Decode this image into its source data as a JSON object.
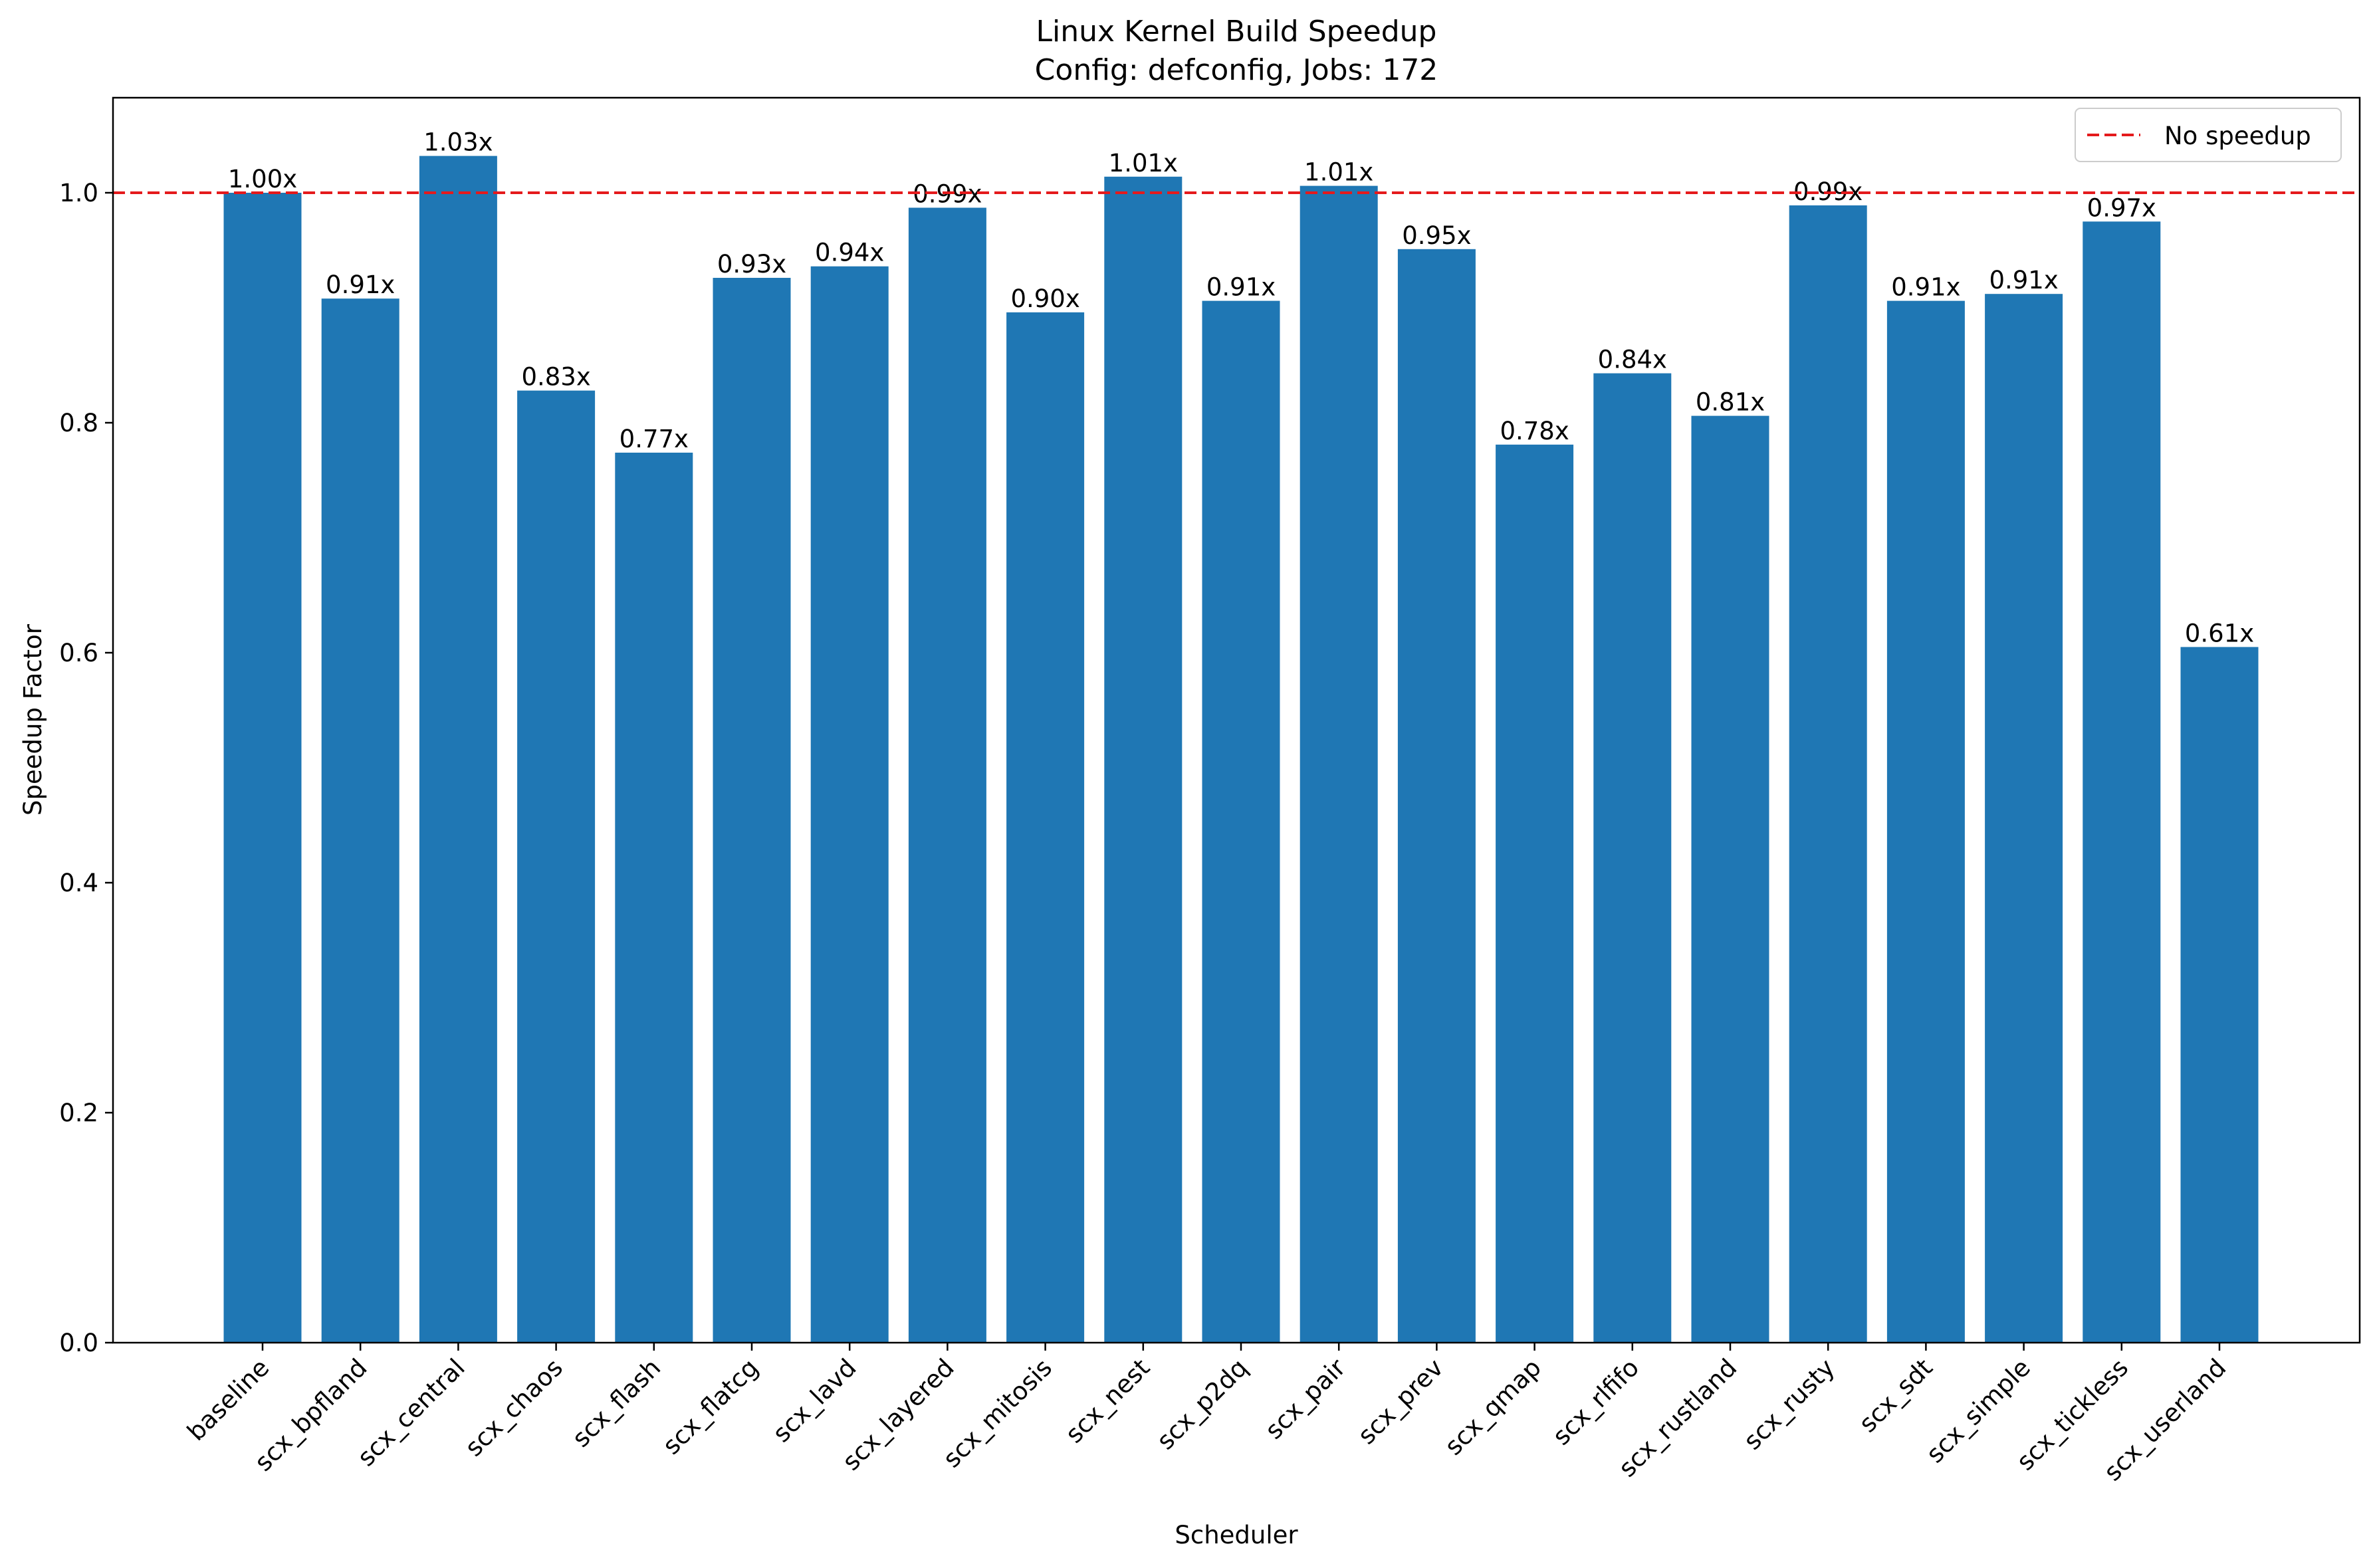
{
  "chart_data": {
    "type": "bar",
    "title": "Linux Kernel Build Speedup",
    "subtitle": "Config: defconfig, Jobs: 172",
    "xlabel": "Scheduler",
    "ylabel": "Speedup Factor",
    "ylim": [
      0,
      1.083
    ],
    "yticks": [
      0.0,
      0.2,
      0.4,
      0.6,
      0.8,
      1.0
    ],
    "ytick_labels": [
      "0.0",
      "0.2",
      "0.4",
      "0.6",
      "0.8",
      "1.0"
    ],
    "grid": false,
    "bar_color": "#1f77b4",
    "categories": [
      "baseline",
      "scx_bpfland",
      "scx_central",
      "scx_chaos",
      "scx_flash",
      "scx_flatcg",
      "scx_lavd",
      "scx_layered",
      "scx_mitosis",
      "scx_nest",
      "scx_p2dq",
      "scx_pair",
      "scx_prev",
      "scx_qmap",
      "scx_rlfifo",
      "scx_rustland",
      "scx_rusty",
      "scx_sdt",
      "scx_simple",
      "scx_tickless",
      "scx_userland"
    ],
    "values": [
      1.0,
      0.908,
      1.032,
      0.828,
      0.774,
      0.926,
      0.936,
      0.987,
      0.896,
      1.014,
      0.906,
      1.006,
      0.951,
      0.781,
      0.843,
      0.806,
      0.989,
      0.906,
      0.912,
      0.975,
      0.605
    ],
    "value_labels": [
      "1.00x",
      "0.91x",
      "1.03x",
      "0.83x",
      "0.77x",
      "0.93x",
      "0.94x",
      "0.99x",
      "0.90x",
      "1.01x",
      "0.91x",
      "1.01x",
      "0.95x",
      "0.78x",
      "0.84x",
      "0.81x",
      "0.99x",
      "0.91x",
      "0.91x",
      "0.97x",
      "0.61x"
    ],
    "reference_line": {
      "value": 1.0,
      "label": "No speedup",
      "color": "#e41a1c",
      "style": "dashed"
    },
    "legend": {
      "placement": "top-right",
      "entries": [
        "No speedup"
      ]
    }
  }
}
